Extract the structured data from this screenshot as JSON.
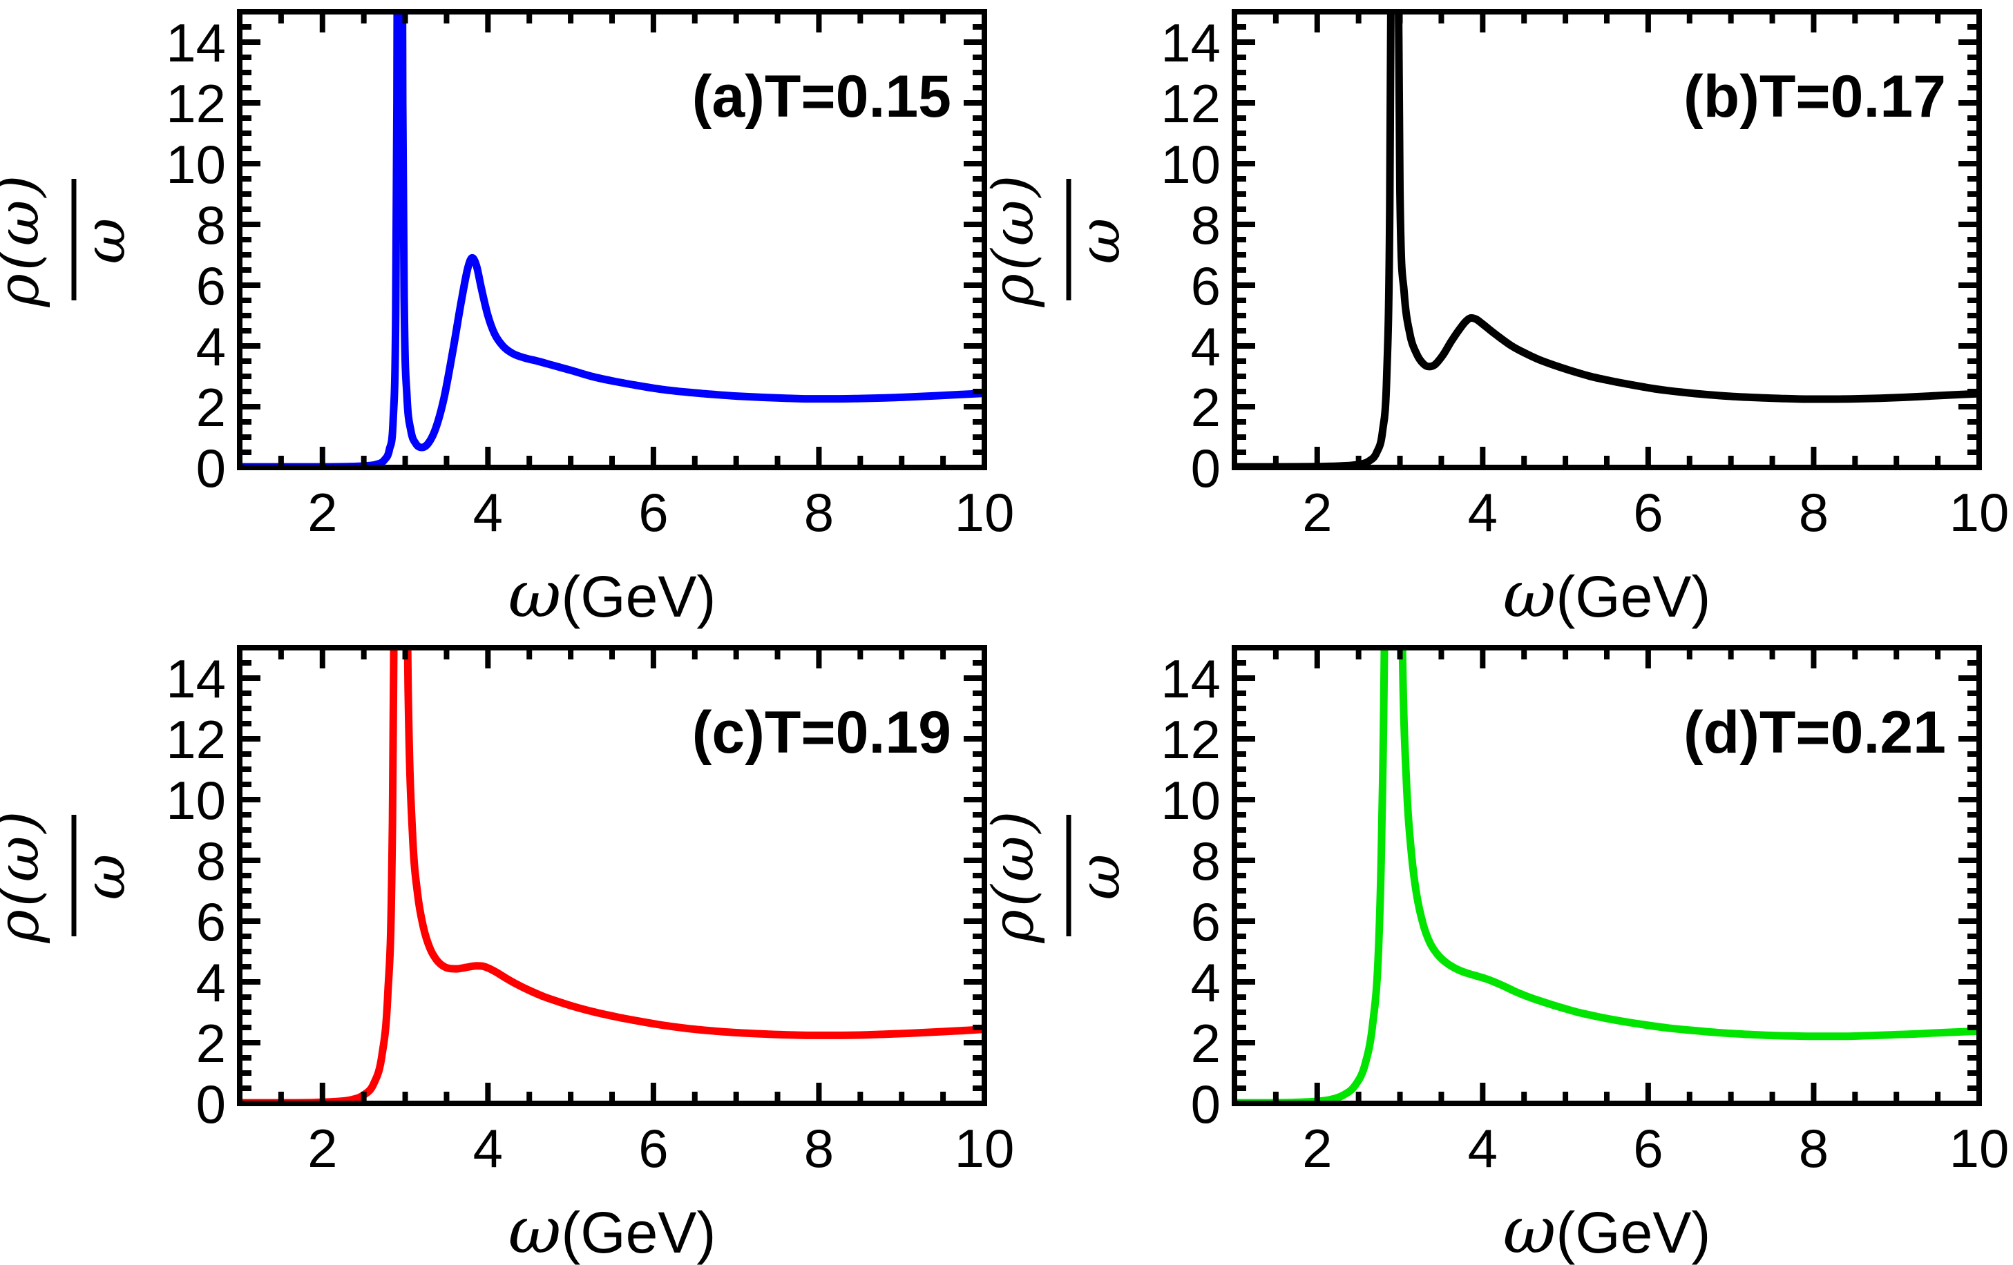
{
  "figure": {
    "background": "#ffffff",
    "description_visible_text_only": "Four framed spectral-function plots"
  },
  "chart_data": {
    "type": "line",
    "xlabel": {
      "symbol": "ω",
      "unit": "(GeV)"
    },
    "ylabel": {
      "numerator": "ρ(ω)",
      "denominator": "ω"
    },
    "xlim": [
      1,
      10
    ],
    "ylim": [
      0,
      15
    ],
    "xticks": [
      2,
      4,
      6,
      8,
      10
    ],
    "yticks": [
      0,
      2,
      4,
      6,
      8,
      10,
      12,
      14
    ],
    "minor_step": 0.5,
    "grid": false,
    "legend": "none",
    "frame_color": "#000000",
    "panels": [
      {
        "id": "a",
        "title": "(a)T=0.15",
        "temperature": "0.15",
        "color": "#0000ff",
        "points": [
          [
            1.0,
            0.02
          ],
          [
            1.5,
            0.02
          ],
          [
            2.0,
            0.02
          ],
          [
            2.3,
            0.03
          ],
          [
            2.5,
            0.05
          ],
          [
            2.65,
            0.1
          ],
          [
            2.75,
            0.25
          ],
          [
            2.81,
            0.6
          ],
          [
            2.855,
            1.6
          ],
          [
            2.885,
            5.0
          ],
          [
            2.9,
            12
          ],
          [
            2.92,
            34
          ],
          [
            2.935,
            45
          ],
          [
            2.95,
            34
          ],
          [
            2.97,
            12
          ],
          [
            2.99,
            5.0
          ],
          [
            3.02,
            2.4
          ],
          [
            3.07,
            1.2
          ],
          [
            3.13,
            0.78
          ],
          [
            3.2,
            0.66
          ],
          [
            3.28,
            0.8
          ],
          [
            3.37,
            1.3
          ],
          [
            3.47,
            2.3
          ],
          [
            3.58,
            3.9
          ],
          [
            3.68,
            5.5
          ],
          [
            3.76,
            6.6
          ],
          [
            3.81,
            6.9
          ],
          [
            3.86,
            6.65
          ],
          [
            3.92,
            5.9
          ],
          [
            4.0,
            5.0
          ],
          [
            4.08,
            4.4
          ],
          [
            4.18,
            4.0
          ],
          [
            4.3,
            3.75
          ],
          [
            4.45,
            3.6
          ],
          [
            4.6,
            3.5
          ],
          [
            4.8,
            3.35
          ],
          [
            5.0,
            3.2
          ],
          [
            5.25,
            3.0
          ],
          [
            5.5,
            2.85
          ],
          [
            5.8,
            2.7
          ],
          [
            6.1,
            2.57
          ],
          [
            6.4,
            2.48
          ],
          [
            6.7,
            2.41
          ],
          [
            7.0,
            2.35
          ],
          [
            7.3,
            2.31
          ],
          [
            7.6,
            2.28
          ],
          [
            7.9,
            2.26
          ],
          [
            8.2,
            2.26
          ],
          [
            8.5,
            2.27
          ],
          [
            8.8,
            2.29
          ],
          [
            9.1,
            2.32
          ],
          [
            9.4,
            2.36
          ],
          [
            9.7,
            2.4
          ],
          [
            10.0,
            2.44
          ]
        ]
      },
      {
        "id": "b",
        "title": "(b)T=0.17",
        "temperature": "0.17",
        "color": "#000000",
        "points": [
          [
            1.0,
            0.02
          ],
          [
            1.5,
            0.02
          ],
          [
            2.0,
            0.03
          ],
          [
            2.3,
            0.05
          ],
          [
            2.5,
            0.1
          ],
          [
            2.62,
            0.2
          ],
          [
            2.72,
            0.5
          ],
          [
            2.79,
            1.2
          ],
          [
            2.84,
            3.0
          ],
          [
            2.875,
            8
          ],
          [
            2.9,
            20
          ],
          [
            2.92,
            45
          ],
          [
            2.95,
            45
          ],
          [
            2.975,
            18
          ],
          [
            3.0,
            9
          ],
          [
            3.05,
            5.8
          ],
          [
            3.12,
            4.4
          ],
          [
            3.2,
            3.75
          ],
          [
            3.28,
            3.42
          ],
          [
            3.35,
            3.32
          ],
          [
            3.42,
            3.38
          ],
          [
            3.52,
            3.7
          ],
          [
            3.62,
            4.15
          ],
          [
            3.72,
            4.55
          ],
          [
            3.8,
            4.82
          ],
          [
            3.86,
            4.92
          ],
          [
            3.92,
            4.88
          ],
          [
            4.0,
            4.72
          ],
          [
            4.1,
            4.5
          ],
          [
            4.22,
            4.25
          ],
          [
            4.35,
            4.0
          ],
          [
            4.5,
            3.78
          ],
          [
            4.68,
            3.55
          ],
          [
            4.85,
            3.38
          ],
          [
            5.05,
            3.2
          ],
          [
            5.3,
            3.0
          ],
          [
            5.55,
            2.85
          ],
          [
            5.8,
            2.72
          ],
          [
            6.1,
            2.58
          ],
          [
            6.4,
            2.48
          ],
          [
            6.7,
            2.4
          ],
          [
            7.0,
            2.34
          ],
          [
            7.3,
            2.3
          ],
          [
            7.6,
            2.27
          ],
          [
            7.9,
            2.25
          ],
          [
            8.2,
            2.25
          ],
          [
            8.5,
            2.26
          ],
          [
            8.8,
            2.28
          ],
          [
            9.1,
            2.31
          ],
          [
            9.4,
            2.35
          ],
          [
            9.7,
            2.39
          ],
          [
            10.0,
            2.43
          ]
        ]
      },
      {
        "id": "c",
        "title": "(c)T=0.19",
        "temperature": "0.19",
        "color": "#ff0000",
        "points": [
          [
            1.0,
            0.02
          ],
          [
            1.5,
            0.02
          ],
          [
            1.9,
            0.03
          ],
          [
            2.15,
            0.06
          ],
          [
            2.35,
            0.12
          ],
          [
            2.5,
            0.28
          ],
          [
            2.62,
            0.65
          ],
          [
            2.72,
            1.6
          ],
          [
            2.79,
            3.6
          ],
          [
            2.84,
            8
          ],
          [
            2.89,
            25
          ],
          [
            2.91,
            45
          ],
          [
            2.96,
            45
          ],
          [
            3.0,
            22
          ],
          [
            3.04,
            13
          ],
          [
            3.09,
            8.8
          ],
          [
            3.15,
            6.9
          ],
          [
            3.22,
            5.8
          ],
          [
            3.3,
            5.1
          ],
          [
            3.38,
            4.72
          ],
          [
            3.46,
            4.52
          ],
          [
            3.54,
            4.44
          ],
          [
            3.62,
            4.43
          ],
          [
            3.7,
            4.46
          ],
          [
            3.78,
            4.5
          ],
          [
            3.86,
            4.53
          ],
          [
            3.93,
            4.52
          ],
          [
            4.0,
            4.46
          ],
          [
            4.1,
            4.32
          ],
          [
            4.22,
            4.12
          ],
          [
            4.35,
            3.92
          ],
          [
            4.5,
            3.72
          ],
          [
            4.67,
            3.52
          ],
          [
            4.85,
            3.35
          ],
          [
            5.05,
            3.18
          ],
          [
            5.3,
            3.0
          ],
          [
            5.55,
            2.85
          ],
          [
            5.8,
            2.72
          ],
          [
            6.1,
            2.58
          ],
          [
            6.4,
            2.47
          ],
          [
            6.7,
            2.39
          ],
          [
            7.0,
            2.33
          ],
          [
            7.3,
            2.29
          ],
          [
            7.6,
            2.26
          ],
          [
            7.9,
            2.24
          ],
          [
            8.2,
            2.24
          ],
          [
            8.5,
            2.25
          ],
          [
            8.8,
            2.28
          ],
          [
            9.1,
            2.31
          ],
          [
            9.4,
            2.35
          ],
          [
            9.7,
            2.39
          ],
          [
            10.0,
            2.44
          ]
        ]
      },
      {
        "id": "d",
        "title": "(d)T=0.21",
        "temperature": "0.21",
        "color": "#00e400",
        "points": [
          [
            1.0,
            0.02
          ],
          [
            1.4,
            0.02
          ],
          [
            1.7,
            0.03
          ],
          [
            1.95,
            0.06
          ],
          [
            2.15,
            0.12
          ],
          [
            2.32,
            0.28
          ],
          [
            2.46,
            0.6
          ],
          [
            2.58,
            1.3
          ],
          [
            2.67,
            2.6
          ],
          [
            2.74,
            5.0
          ],
          [
            2.78,
            9
          ],
          [
            2.82,
            18
          ],
          [
            2.86,
            45
          ],
          [
            2.94,
            45
          ],
          [
            2.99,
            25
          ],
          [
            3.03,
            15
          ],
          [
            3.08,
            10.5
          ],
          [
            3.14,
            8.2
          ],
          [
            3.2,
            6.9
          ],
          [
            3.28,
            5.9
          ],
          [
            3.36,
            5.3
          ],
          [
            3.44,
            4.95
          ],
          [
            3.52,
            4.72
          ],
          [
            3.62,
            4.52
          ],
          [
            3.72,
            4.38
          ],
          [
            3.82,
            4.28
          ],
          [
            3.92,
            4.2
          ],
          [
            4.02,
            4.12
          ],
          [
            4.12,
            4.02
          ],
          [
            4.24,
            3.88
          ],
          [
            4.38,
            3.7
          ],
          [
            4.54,
            3.52
          ],
          [
            4.72,
            3.35
          ],
          [
            4.92,
            3.18
          ],
          [
            5.15,
            3.0
          ],
          [
            5.4,
            2.85
          ],
          [
            5.65,
            2.72
          ],
          [
            5.95,
            2.59
          ],
          [
            6.25,
            2.48
          ],
          [
            6.55,
            2.4
          ],
          [
            6.85,
            2.33
          ],
          [
            7.15,
            2.28
          ],
          [
            7.45,
            2.24
          ],
          [
            7.75,
            2.22
          ],
          [
            8.05,
            2.21
          ],
          [
            8.35,
            2.21
          ],
          [
            8.65,
            2.23
          ],
          [
            8.95,
            2.26
          ],
          [
            9.25,
            2.29
          ],
          [
            9.55,
            2.33
          ],
          [
            9.8,
            2.36
          ],
          [
            10.0,
            2.38
          ]
        ]
      }
    ]
  }
}
